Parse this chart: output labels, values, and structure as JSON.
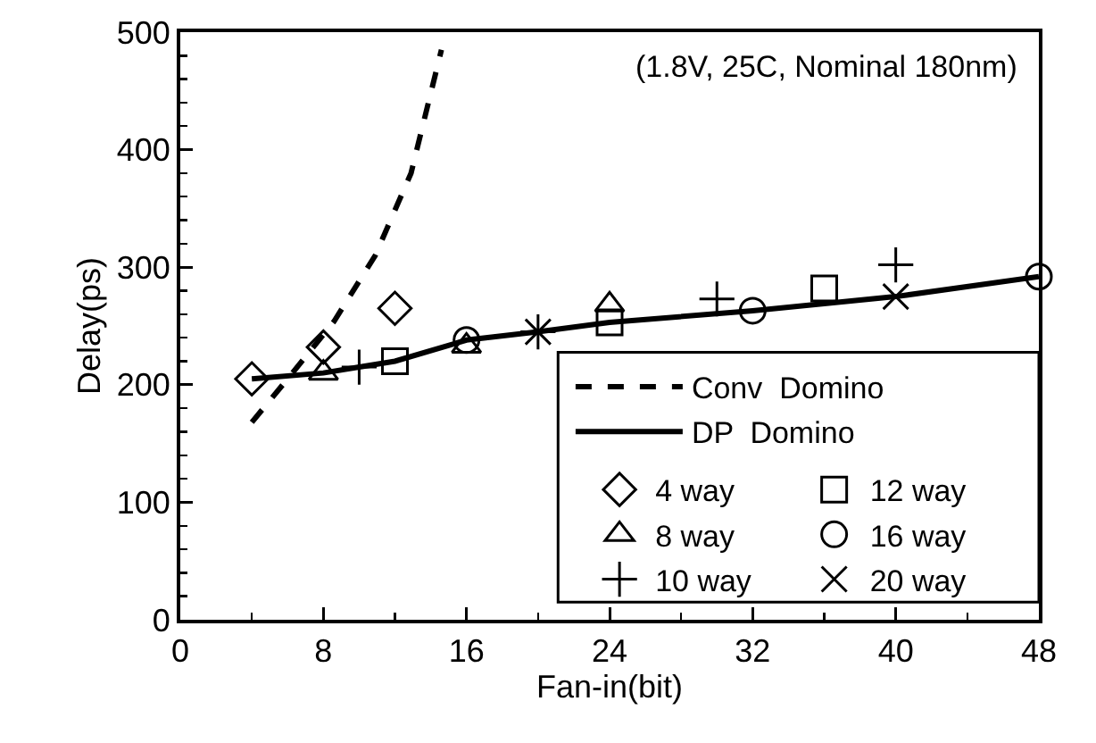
{
  "chart_data": {
    "type": "scatter",
    "xlabel": "Fan-in(bit)",
    "ylabel": "Delay(ps)",
    "xlim": [
      0,
      48
    ],
    "ylim": [
      0,
      500
    ],
    "xticks": [
      0,
      8,
      16,
      24,
      32,
      40,
      48
    ],
    "yticks": [
      0,
      100,
      200,
      300,
      400,
      500
    ],
    "grid": false,
    "legend": "bottom right",
    "annotations": [
      "(1.8V, 25C, Nominal 180nm)"
    ],
    "series": [
      {
        "name": "Conv  Domino",
        "type": "line",
        "line_style": "dashed",
        "marker": "none",
        "color": "#000000",
        "x": [
          4,
          6,
          8.6,
          10.9,
          12.9,
          14.6
        ],
        "values": [
          168,
          205,
          254,
          310,
          380,
          485
        ]
      },
      {
        "name": "DP  Domino",
        "type": "line",
        "line_style": "solid",
        "marker": "none",
        "color": "#000000",
        "x": [
          4,
          8,
          10,
          12,
          16,
          20,
          24,
          32,
          40,
          48
        ],
        "values": [
          205,
          210,
          215,
          220,
          238,
          245,
          253,
          263,
          275,
          292
        ]
      },
      {
        "name": "4 way",
        "marker": "diamond",
        "color": "#000000",
        "x": [
          4,
          8,
          12
        ],
        "values": [
          205,
          232,
          265
        ]
      },
      {
        "name": "8 way",
        "marker": "triangle",
        "color": "#000000",
        "x": [
          8,
          16,
          24
        ],
        "values": [
          210,
          233,
          268
        ]
      },
      {
        "name": "10 way",
        "marker": "plus",
        "color": "#000000",
        "x": [
          10,
          20,
          30,
          40
        ],
        "values": [
          215,
          245,
          273,
          302
        ]
      },
      {
        "name": "12 way",
        "marker": "square",
        "color": "#000000",
        "x": [
          12,
          24,
          36
        ],
        "values": [
          220,
          253,
          282
        ]
      },
      {
        "name": "16 way",
        "marker": "circle",
        "color": "#000000",
        "x": [
          16,
          32,
          48
        ],
        "values": [
          238,
          263,
          292
        ]
      },
      {
        "name": "20 way",
        "marker": "cross",
        "color": "#000000",
        "x": [
          20,
          40
        ],
        "values": [
          245,
          275
        ]
      }
    ]
  }
}
